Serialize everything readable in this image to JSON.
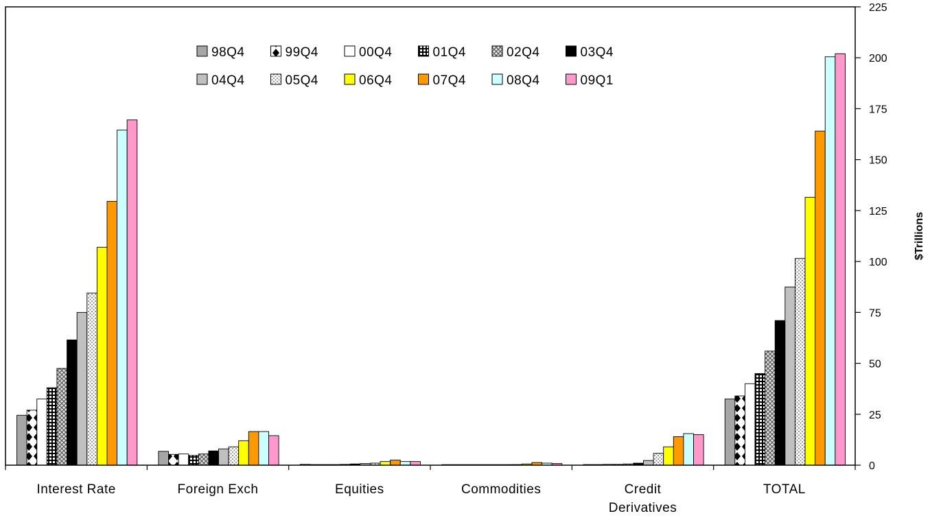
{
  "chart_data": {
    "type": "bar",
    "categories": [
      "Interest Rate",
      "Foreign Exch",
      "Equities",
      "Commodities",
      "Credit Derivatives",
      "TOTAL"
    ],
    "category_lines": [
      [
        "Interest Rate"
      ],
      [
        "Foreign Exch"
      ],
      [
        "Equities"
      ],
      [
        "Commodities"
      ],
      [
        "Credit",
        "Derivatives"
      ],
      [
        "TOTAL"
      ]
    ],
    "ylabel": "$Trillions",
    "ylim": [
      0,
      225
    ],
    "yticks": [
      0,
      25,
      50,
      75,
      100,
      125,
      150,
      175,
      200,
      225
    ],
    "y_axis_side": "right",
    "grid": false,
    "legend_position": "top-center",
    "series": [
      {
        "name": "98Q4",
        "color": "#a6a6a6",
        "pattern": "solid-gray",
        "values": [
          24.5,
          6.8,
          0.4,
          0.2,
          0.3,
          32.5
        ]
      },
      {
        "name": "99Q4",
        "color": "#ffffff",
        "pattern": "diamond-black",
        "values": [
          27.0,
          5.3,
          0.3,
          0.1,
          0.3,
          34.0
        ]
      },
      {
        "name": "00Q4",
        "color": "#ffffff",
        "pattern": "white",
        "values": [
          32.5,
          5.5,
          0.3,
          0.1,
          0.4,
          40.0
        ]
      },
      {
        "name": "01Q4",
        "color": "#ffffff",
        "pattern": "grid-black",
        "values": [
          38.0,
          4.8,
          0.3,
          0.1,
          0.4,
          45.0
        ]
      },
      {
        "name": "02Q4",
        "color": "#d9d9d9",
        "pattern": "crosshatch",
        "values": [
          47.5,
          5.5,
          0.4,
          0.1,
          0.6,
          56.0
        ]
      },
      {
        "name": "03Q4",
        "color": "#000000",
        "pattern": "solid-black",
        "values": [
          61.5,
          7.0,
          0.6,
          0.1,
          1.0,
          71.0
        ]
      },
      {
        "name": "04Q4",
        "color": "#c0c0c0",
        "pattern": "solid-lightgray",
        "values": [
          75.0,
          8.0,
          0.8,
          0.2,
          2.3,
          87.5
        ]
      },
      {
        "name": "05Q4",
        "color": "#dcdcdc",
        "pattern": "dots",
        "values": [
          84.5,
          9.0,
          1.0,
          0.3,
          5.8,
          101.5
        ]
      },
      {
        "name": "06Q4",
        "color": "#ffff00",
        "pattern": "solid-yellow",
        "values": [
          107.0,
          12.0,
          1.8,
          0.6,
          9.0,
          131.5
        ]
      },
      {
        "name": "07Q4",
        "color": "#ff9900",
        "pattern": "solid-orange",
        "values": [
          129.5,
          16.5,
          2.5,
          1.3,
          14.0,
          164.0
        ]
      },
      {
        "name": "08Q4",
        "color": "#ccffff",
        "pattern": "solid-cyan",
        "values": [
          164.5,
          16.5,
          1.8,
          1.0,
          15.5,
          200.5
        ]
      },
      {
        "name": "09Q1",
        "color": "#ff99cc",
        "pattern": "solid-pink",
        "values": [
          169.5,
          14.5,
          1.8,
          0.8,
          15.0,
          202.0
        ]
      }
    ]
  }
}
